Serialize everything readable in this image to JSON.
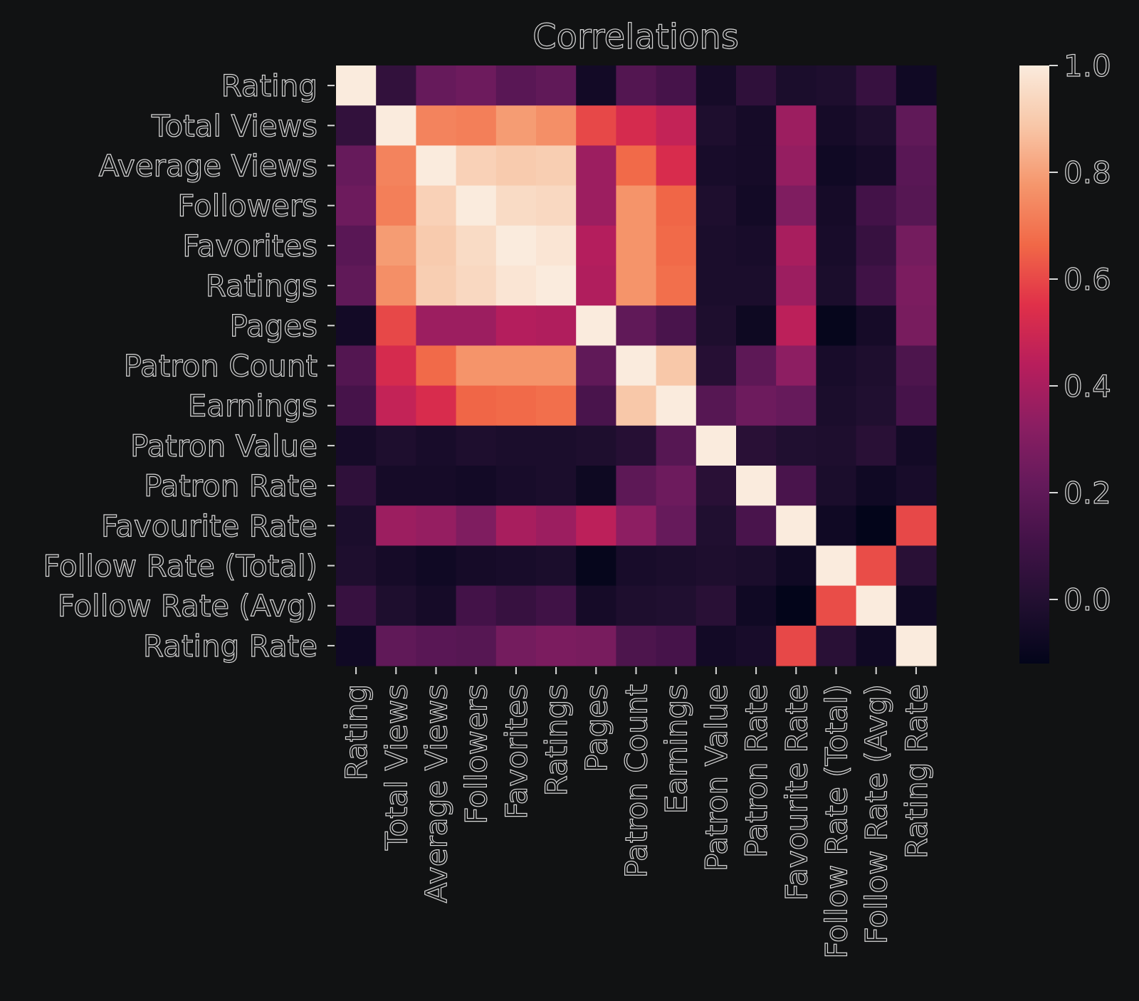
{
  "chart_data": {
    "type": "heatmap",
    "title": "Correlations",
    "xlabel": "",
    "ylabel": "",
    "colormap": "rocket",
    "background": "#111213",
    "text_color": "#d8d8d8",
    "labels": [
      "Rating",
      "Total Views",
      "Average Views",
      "Followers",
      "Favorites",
      "Ratings",
      "Pages",
      "Patron Count",
      "Earnings",
      "Patron Value",
      "Patron Rate",
      "Favourite Rate",
      "Follow Rate (Total)",
      "Follow Rate (Avg)",
      "Rating Rate"
    ],
    "matrix": [
      [
        1.0,
        0.05,
        0.22,
        0.24,
        0.18,
        0.2,
        -0.06,
        0.16,
        0.12,
        -0.05,
        0.04,
        -0.03,
        -0.02,
        0.07,
        -0.07
      ],
      [
        0.05,
        1.0,
        0.73,
        0.72,
        0.79,
        0.76,
        0.6,
        0.52,
        0.47,
        -0.02,
        -0.05,
        0.37,
        -0.05,
        -0.02,
        0.2
      ],
      [
        0.22,
        0.73,
        1.0,
        0.92,
        0.9,
        0.91,
        0.37,
        0.67,
        0.53,
        -0.04,
        -0.05,
        0.35,
        -0.07,
        -0.05,
        0.18
      ],
      [
        0.24,
        0.72,
        0.92,
        1.0,
        0.95,
        0.94,
        0.37,
        0.77,
        0.66,
        -0.02,
        -0.06,
        0.29,
        -0.05,
        0.11,
        0.17
      ],
      [
        0.18,
        0.79,
        0.9,
        0.95,
        1.0,
        0.98,
        0.43,
        0.77,
        0.67,
        -0.03,
        -0.04,
        0.4,
        -0.04,
        0.07,
        0.26
      ],
      [
        0.2,
        0.76,
        0.91,
        0.94,
        0.98,
        1.0,
        0.42,
        0.77,
        0.68,
        -0.03,
        -0.03,
        0.37,
        -0.03,
        0.1,
        0.28
      ],
      [
        -0.06,
        0.6,
        0.37,
        0.37,
        0.43,
        0.42,
        1.0,
        0.2,
        0.13,
        -0.02,
        -0.08,
        0.45,
        -0.11,
        -0.05,
        0.27
      ],
      [
        0.16,
        0.52,
        0.67,
        0.77,
        0.77,
        0.77,
        0.2,
        1.0,
        0.89,
        0.01,
        0.19,
        0.33,
        -0.04,
        -0.02,
        0.14
      ],
      [
        0.12,
        0.47,
        0.53,
        0.66,
        0.67,
        0.68,
        0.13,
        0.89,
        1.0,
        0.17,
        0.24,
        0.22,
        -0.03,
        -0.01,
        0.12
      ],
      [
        -0.05,
        -0.02,
        -0.04,
        -0.02,
        -0.03,
        -0.03,
        -0.02,
        0.01,
        0.17,
        1.0,
        0.02,
        -0.01,
        -0.02,
        0.02,
        -0.06
      ],
      [
        0.04,
        -0.05,
        -0.05,
        -0.06,
        -0.04,
        -0.03,
        -0.08,
        0.19,
        0.24,
        0.02,
        1.0,
        0.13,
        -0.03,
        -0.07,
        -0.04
      ],
      [
        -0.03,
        0.37,
        0.35,
        0.29,
        0.4,
        0.37,
        0.45,
        0.33,
        0.22,
        -0.01,
        0.13,
        1.0,
        -0.07,
        -0.12,
        0.6
      ],
      [
        -0.02,
        -0.05,
        -0.07,
        -0.05,
        -0.04,
        -0.03,
        -0.11,
        -0.04,
        -0.03,
        -0.02,
        -0.03,
        -0.07,
        1.0,
        0.61,
        0.02
      ],
      [
        0.07,
        -0.02,
        -0.05,
        0.11,
        0.07,
        0.1,
        -0.05,
        -0.02,
        -0.01,
        0.02,
        -0.07,
        -0.12,
        0.61,
        1.0,
        -0.07
      ],
      [
        -0.07,
        0.2,
        0.18,
        0.17,
        0.26,
        0.28,
        0.27,
        0.14,
        0.12,
        -0.06,
        -0.04,
        0.6,
        0.02,
        -0.07,
        1.0
      ]
    ],
    "vmin": -0.12,
    "vmax": 1.0,
    "colorbar_ticks": [
      "1.0",
      "0.8",
      "0.6",
      "0.4",
      "0.2",
      "0.0"
    ],
    "colorbar_tick_values": [
      1.0,
      0.8,
      0.6,
      0.4,
      0.2,
      0.0
    ],
    "grid": false,
    "legend": "colorbar-right"
  }
}
